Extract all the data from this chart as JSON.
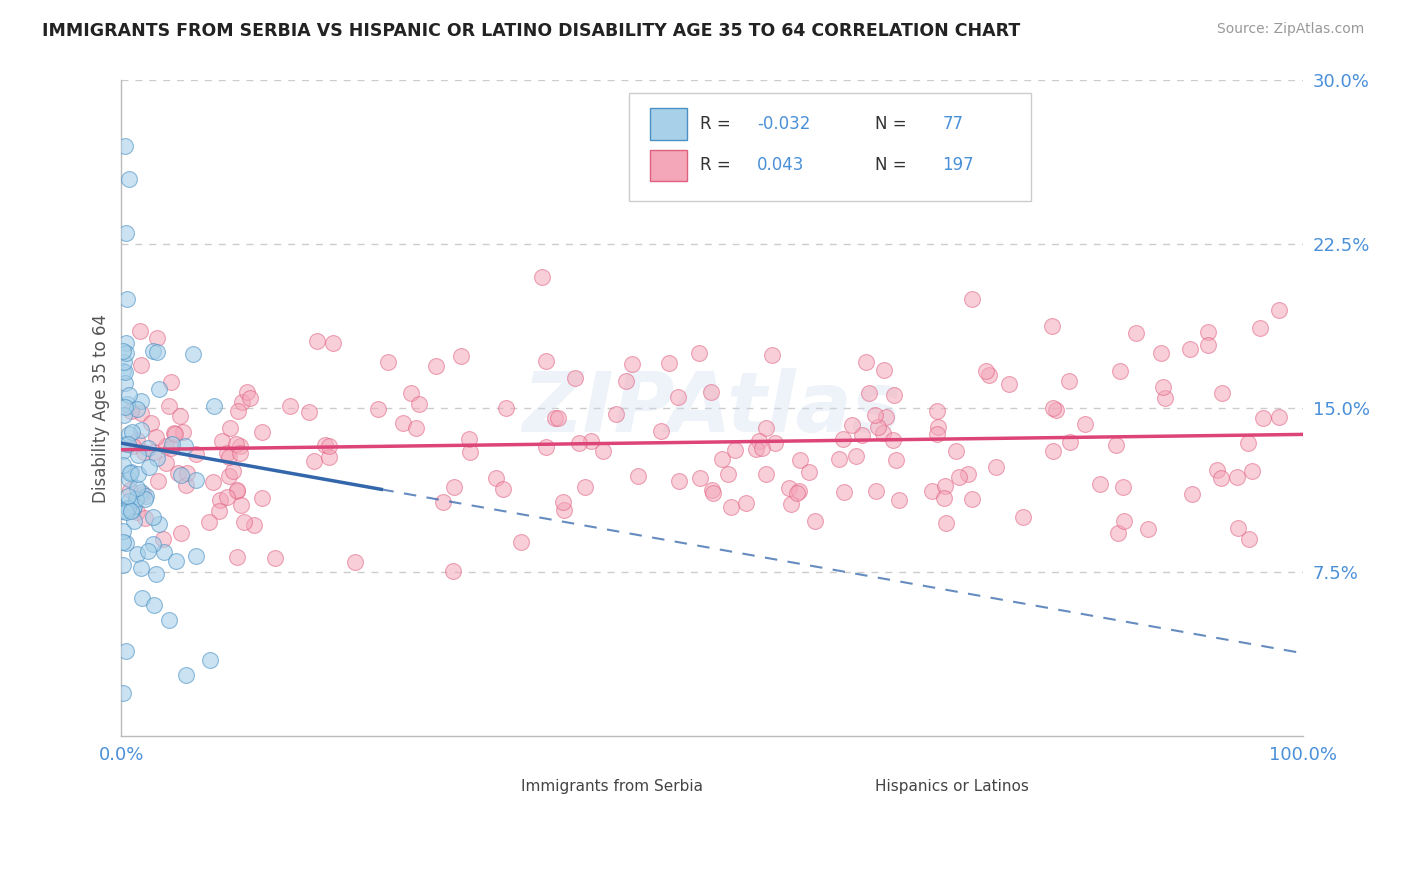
{
  "title": "IMMIGRANTS FROM SERBIA VS HISPANIC OR LATINO DISABILITY AGE 35 TO 64 CORRELATION CHART",
  "source": "Source: ZipAtlas.com",
  "ylabel": "Disability Age 35 to 64",
  "xlim": [
    0.0,
    1.0
  ],
  "ylim": [
    0.0,
    0.3
  ],
  "ytick_vals": [
    0.075,
    0.15,
    0.225,
    0.3
  ],
  "ytick_labels": [
    "7.5%",
    "15.0%",
    "22.5%",
    "30.0%"
  ],
  "xtick_vals": [
    0.0,
    1.0
  ],
  "xtick_labels": [
    "0.0%",
    "100.0%"
  ],
  "legend_R1": "-0.032",
  "legend_N1": "77",
  "legend_R2": "0.043",
  "legend_N2": "197",
  "color_blue_fill": "#a8d0e8",
  "color_blue_edge": "#4a90c4",
  "color_pink_fill": "#f4a7b9",
  "color_pink_edge": "#e06080",
  "color_line_blue": "#3366aa",
  "color_line_pink": "#dd4477",
  "background_color": "#ffffff",
  "grid_color": "#cccccc",
  "blue_trend_y0": 0.134,
  "blue_trend_y1": 0.038,
  "blue_solid_xend": 0.22,
  "pink_trend_y0": 0.131,
  "pink_trend_y1": 0.138
}
